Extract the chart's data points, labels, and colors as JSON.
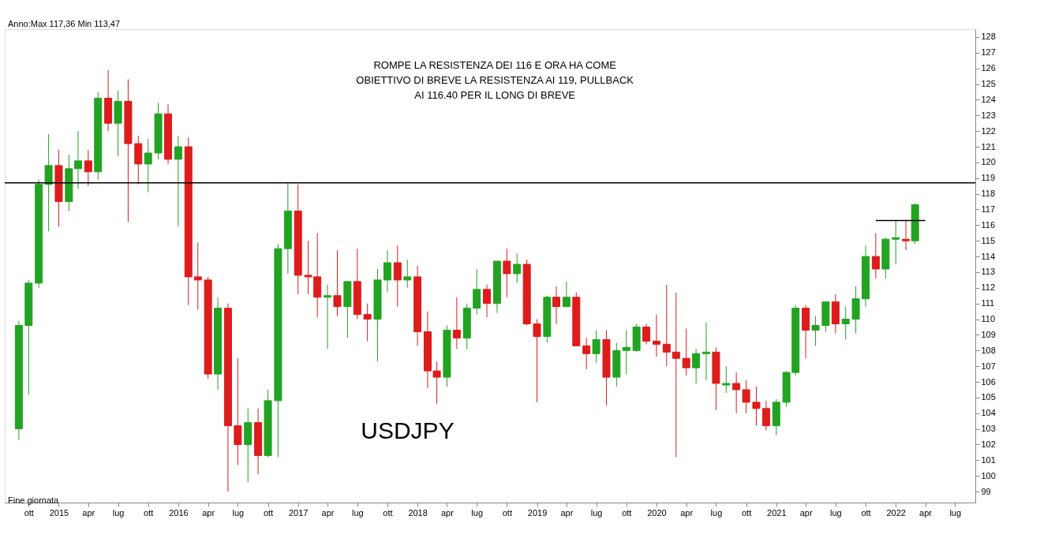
{
  "chart_data": {
    "type": "candlestick",
    "x": [
      "2014-09",
      "2014-10",
      "2014-11",
      "2014-12",
      "2015-01",
      "2015-02",
      "2015-03",
      "2015-04",
      "2015-05",
      "2015-06",
      "2015-07",
      "2015-08",
      "2015-09",
      "2015-10",
      "2015-11",
      "2015-12",
      "2016-01",
      "2016-02",
      "2016-03",
      "2016-04",
      "2016-05",
      "2016-06",
      "2016-07",
      "2016-08",
      "2016-09",
      "2016-10",
      "2016-11",
      "2016-12",
      "2017-01",
      "2017-02",
      "2017-03",
      "2017-04",
      "2017-05",
      "2017-06",
      "2017-07",
      "2017-08",
      "2017-09",
      "2017-10",
      "2017-11",
      "2017-12",
      "2018-01",
      "2018-02",
      "2018-03",
      "2018-04",
      "2018-05",
      "2018-06",
      "2018-07",
      "2018-08",
      "2018-09",
      "2018-10",
      "2018-11",
      "2018-12",
      "2019-01",
      "2019-02",
      "2019-03",
      "2019-04",
      "2019-05",
      "2019-06",
      "2019-07",
      "2019-08",
      "2019-09",
      "2019-10",
      "2019-11",
      "2019-12",
      "2020-01",
      "2020-02",
      "2020-03",
      "2020-04",
      "2020-05",
      "2020-06",
      "2020-07",
      "2020-08",
      "2020-09",
      "2020-10",
      "2020-11",
      "2020-12",
      "2021-01",
      "2021-02",
      "2021-03",
      "2021-04",
      "2021-05",
      "2021-06",
      "2021-07",
      "2021-08",
      "2021-09",
      "2021-10",
      "2021-11",
      "2021-12",
      "2022-01",
      "2022-02",
      "2022-03"
    ],
    "ohlc": [
      [
        103.0,
        109.9,
        102.3,
        109.6
      ],
      [
        109.6,
        112.5,
        105.2,
        112.3
      ],
      [
        112.3,
        118.9,
        112.0,
        118.6
      ],
      [
        118.6,
        121.8,
        115.6,
        119.8
      ],
      [
        119.8,
        120.8,
        115.9,
        117.5
      ],
      [
        117.5,
        120.5,
        116.9,
        119.6
      ],
      [
        119.6,
        122.0,
        118.3,
        120.1
      ],
      [
        120.1,
        120.8,
        118.5,
        119.4
      ],
      [
        119.4,
        124.5,
        118.9,
        124.1
      ],
      [
        124.1,
        125.9,
        122.0,
        122.5
      ],
      [
        122.5,
        124.6,
        120.4,
        123.9
      ],
      [
        123.9,
        125.3,
        116.2,
        121.2
      ],
      [
        121.2,
        121.7,
        118.6,
        119.9
      ],
      [
        119.9,
        121.5,
        118.1,
        120.6
      ],
      [
        120.6,
        123.8,
        120.2,
        123.1
      ],
      [
        123.1,
        123.7,
        119.9,
        120.2
      ],
      [
        120.2,
        121.7,
        115.9,
        121.0
      ],
      [
        121.0,
        121.6,
        110.9,
        112.7
      ],
      [
        112.7,
        114.9,
        110.6,
        112.5
      ],
      [
        112.5,
        112.7,
        106.2,
        106.5
      ],
      [
        106.5,
        111.4,
        105.5,
        110.7
      ],
      [
        110.7,
        111.0,
        99.0,
        103.2
      ],
      [
        103.2,
        107.5,
        100.7,
        102.0
      ],
      [
        102.0,
        104.3,
        99.6,
        103.4
      ],
      [
        103.4,
        104.3,
        100.1,
        101.3
      ],
      [
        101.3,
        105.5,
        101.2,
        104.8
      ],
      [
        104.8,
        114.8,
        101.2,
        114.5
      ],
      [
        114.5,
        118.7,
        112.9,
        116.9
      ],
      [
        116.9,
        118.6,
        111.6,
        112.8
      ],
      [
        112.8,
        115.0,
        111.6,
        112.7
      ],
      [
        112.7,
        115.5,
        110.1,
        111.4
      ],
      [
        111.4,
        112.2,
        108.1,
        111.5
      ],
      [
        111.5,
        114.4,
        110.2,
        110.8
      ],
      [
        110.8,
        112.4,
        108.8,
        112.4
      ],
      [
        112.4,
        114.5,
        110.0,
        110.3
      ],
      [
        110.3,
        111.0,
        108.6,
        110.0
      ],
      [
        110.0,
        113.2,
        107.3,
        112.5
      ],
      [
        112.5,
        114.4,
        111.7,
        113.6
      ],
      [
        113.6,
        114.7,
        110.8,
        112.5
      ],
      [
        112.5,
        113.8,
        112.0,
        112.7
      ],
      [
        112.7,
        113.4,
        108.3,
        109.2
      ],
      [
        109.2,
        110.5,
        105.6,
        106.7
      ],
      [
        106.7,
        107.3,
        104.6,
        106.3
      ],
      [
        106.3,
        109.6,
        105.7,
        109.3
      ],
      [
        109.3,
        111.4,
        108.1,
        108.8
      ],
      [
        108.8,
        111.0,
        108.1,
        110.7
      ],
      [
        110.7,
        113.2,
        110.3,
        111.9
      ],
      [
        111.9,
        112.2,
        110.1,
        111.0
      ],
      [
        111.0,
        113.7,
        110.4,
        113.7
      ],
      [
        113.7,
        114.5,
        111.4,
        112.9
      ],
      [
        112.9,
        114.2,
        112.3,
        113.5
      ],
      [
        113.5,
        113.8,
        109.6,
        109.7
      ],
      [
        109.7,
        110.0,
        104.7,
        108.9
      ],
      [
        108.9,
        111.5,
        108.5,
        111.4
      ],
      [
        111.4,
        112.1,
        109.7,
        110.8
      ],
      [
        110.8,
        112.4,
        110.8,
        111.4
      ],
      [
        111.4,
        111.7,
        108.3,
        108.3
      ],
      [
        108.3,
        108.8,
        106.8,
        107.8
      ],
      [
        107.8,
        109.3,
        107.2,
        108.7
      ],
      [
        108.7,
        109.3,
        104.5,
        106.3
      ],
      [
        106.3,
        108.5,
        105.7,
        108.0
      ],
      [
        108.0,
        109.3,
        106.5,
        108.2
      ],
      [
        108.0,
        109.7,
        107.9,
        109.5
      ],
      [
        109.5,
        109.7,
        108.4,
        108.6
      ],
      [
        108.6,
        110.3,
        107.6,
        108.4
      ],
      [
        108.4,
        112.2,
        107.0,
        107.9
      ],
      [
        107.9,
        111.7,
        101.2,
        107.5
      ],
      [
        107.5,
        109.4,
        106.4,
        106.9
      ],
      [
        106.9,
        108.1,
        105.9,
        107.8
      ],
      [
        107.8,
        109.8,
        106.1,
        107.9
      ],
      [
        107.9,
        108.2,
        104.2,
        105.9
      ],
      [
        105.8,
        107.0,
        105.3,
        105.9
      ],
      [
        105.9,
        106.6,
        104.0,
        105.5
      ],
      [
        105.5,
        106.1,
        104.0,
        104.7
      ],
      [
        104.7,
        105.7,
        103.2,
        104.3
      ],
      [
        104.3,
        104.8,
        102.9,
        103.2
      ],
      [
        103.2,
        104.9,
        102.6,
        104.7
      ],
      [
        104.7,
        106.7,
        104.4,
        106.6
      ],
      [
        106.6,
        110.9,
        106.4,
        110.7
      ],
      [
        110.7,
        110.9,
        107.5,
        109.3
      ],
      [
        109.3,
        110.2,
        108.3,
        109.6
      ],
      [
        109.6,
        111.1,
        109.2,
        111.1
      ],
      [
        111.1,
        111.6,
        109.1,
        109.7
      ],
      [
        109.7,
        110.8,
        108.7,
        110.0
      ],
      [
        110.0,
        112.1,
        109.1,
        111.3
      ],
      [
        111.3,
        114.7,
        110.8,
        114.0
      ],
      [
        114.0,
        115.5,
        112.6,
        113.2
      ],
      [
        113.2,
        115.2,
        112.6,
        115.1
      ],
      [
        115.1,
        116.3,
        113.5,
        115.2
      ],
      [
        115.1,
        116.3,
        114.4,
        115.0
      ],
      [
        115.0,
        117.4,
        114.8,
        117.3
      ]
    ],
    "series": [
      {
        "type": "line",
        "color": "#000000",
        "x": [
          "2021-11",
          "2022-04"
        ],
        "values": [
          116.3,
          116.3
        ]
      }
    ],
    "ref_lines": [
      {
        "axis": "y",
        "value": 118.7,
        "color": "#000000"
      }
    ],
    "annotations": [
      "ROMPE LA RESISTENZA DEI 116 E ORA HA COME\nOBIETTIVO DI BREVE LA RESISTENZA AI 119, PULLBACK\nAI 116.40 PER IL LONG DI BREVE",
      "USDJPY",
      "Anno:Max 117,36 Min 113,47",
      "Fine giornata"
    ],
    "xlim": [
      "2014-08-01",
      "2022-08-20"
    ],
    "xticks": [
      {
        "value": "2014-10",
        "label": "ott"
      },
      {
        "value": "2015-01",
        "label": "2015"
      },
      {
        "value": "2015-04",
        "label": "apr"
      },
      {
        "value": "2015-07",
        "label": "lug"
      },
      {
        "value": "2015-10",
        "label": "ott"
      },
      {
        "value": "2016-01",
        "label": "2016"
      },
      {
        "value": "2016-04",
        "label": "apr"
      },
      {
        "value": "2016-07",
        "label": "lug"
      },
      {
        "value": "2016-10",
        "label": "ott"
      },
      {
        "value": "2017-01",
        "label": "2017"
      },
      {
        "value": "2017-04",
        "label": "apr"
      },
      {
        "value": "2017-07",
        "label": "lug"
      },
      {
        "value": "2017-10",
        "label": "ott"
      },
      {
        "value": "2018-01",
        "label": "2018"
      },
      {
        "value": "2018-04",
        "label": "apr"
      },
      {
        "value": "2018-07",
        "label": "lug"
      },
      {
        "value": "2018-10",
        "label": "ott"
      },
      {
        "value": "2019-01",
        "label": "2019"
      },
      {
        "value": "2019-04",
        "label": "apr"
      },
      {
        "value": "2019-07",
        "label": "lug"
      },
      {
        "value": "2019-10",
        "label": "ott"
      },
      {
        "value": "2020-01",
        "label": "2020"
      },
      {
        "value": "2020-04",
        "label": "apr"
      },
      {
        "value": "2020-07",
        "label": "lug"
      },
      {
        "value": "2020-10",
        "label": "ott"
      },
      {
        "value": "2021-01",
        "label": "2021"
      },
      {
        "value": "2021-04",
        "label": "apr"
      },
      {
        "value": "2021-07",
        "label": "lug"
      },
      {
        "value": "2021-10",
        "label": "ott"
      },
      {
        "value": "2022-01",
        "label": "2022"
      },
      {
        "value": "2022-04",
        "label": "apr"
      },
      {
        "value": "2022-07",
        "label": "lug"
      }
    ],
    "ylim": [
      98.3,
      128.5
    ],
    "yticks": [
      99,
      100,
      101,
      102,
      103,
      104,
      105,
      106,
      107,
      108,
      109,
      110,
      111,
      112,
      113,
      114,
      115,
      116,
      117,
      118,
      119,
      120,
      121,
      122,
      123,
      124,
      125,
      126,
      127,
      128
    ],
    "grid": false
  }
}
